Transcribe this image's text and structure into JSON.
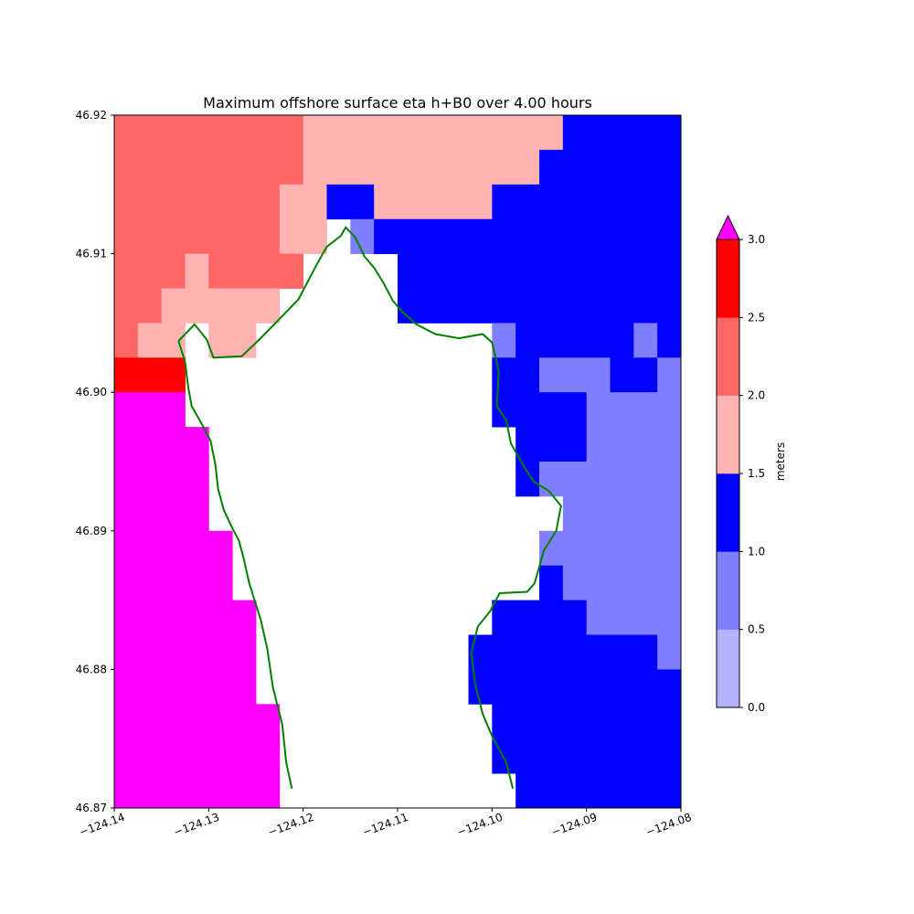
{
  "chart_data": {
    "type": "heatmap",
    "title": "Maximum offshore surface eta h+B0 over 4.00 hours",
    "xlabel": "",
    "ylabel": "",
    "xlim": [
      -124.14,
      -124.08
    ],
    "ylim": [
      46.87,
      46.92
    ],
    "x_ticks": [
      -124.14,
      -124.13,
      -124.12,
      -124.11,
      -124.1,
      -124.09,
      -124.08
    ],
    "x_tick_labels": [
      "−124.14",
      "−124.13",
      "−124.12",
      "−124.11",
      "−124.10",
      "−124.09",
      "−124.08"
    ],
    "y_ticks": [
      46.87,
      46.88,
      46.89,
      46.9,
      46.91,
      46.92
    ],
    "y_tick_labels": [
      "46.87",
      "46.88",
      "46.89",
      "46.90",
      "46.91",
      "46.92"
    ],
    "grid": false,
    "colorbar": {
      "label": "meters",
      "placement": "right",
      "extend": "max",
      "levels": [
        0.0,
        0.5,
        1.0,
        1.5,
        2.0,
        2.5,
        3.0
      ],
      "level_labels": [
        "0.0",
        "0.5",
        "1.0",
        "1.5",
        "2.0",
        "2.5",
        "3.0"
      ],
      "colors": [
        "#b3b3ff",
        "#8080ff",
        "#0000ff",
        "#ffb3b3",
        "#ff6666",
        "#ff0000"
      ],
      "over_color": "#ff00ff"
    },
    "grid_spacing_deg": 0.0025,
    "cells": [
      {
        "row": "46.9175-46.92",
        "bands": [
          [
            -124.14,
            -124.12,
            2.25
          ],
          [
            -124.12,
            -124.0925,
            1.75
          ],
          [
            -124.0925,
            -124.08,
            1.25
          ]
        ]
      },
      {
        "row": "46.915-46.9175",
        "bands": [
          [
            -124.14,
            -124.12,
            2.25
          ],
          [
            -124.12,
            -124.095,
            1.75
          ],
          [
            -124.095,
            -124.08,
            1.25
          ]
        ]
      },
      {
        "row": "46.9125-46.915",
        "bands": [
          [
            -124.14,
            -124.1225,
            2.25
          ],
          [
            -124.1225,
            -124.1175,
            1.75
          ],
          [
            -124.1175,
            -124.1125,
            1.25
          ],
          [
            -124.1125,
            -124.1,
            1.75
          ],
          [
            -124.1,
            -124.08,
            1.25
          ]
        ]
      },
      {
        "row": "46.91-46.9125",
        "bands": [
          [
            -124.14,
            -124.1225,
            2.25
          ],
          [
            -124.1225,
            -124.12,
            1.75
          ],
          [
            -124.12,
            -124.1175,
            1.75
          ],
          [
            -124.115,
            -124.1125,
            0.75
          ],
          [
            -124.1125,
            -124.08,
            1.25
          ]
        ]
      },
      {
        "row": "46.9075-46.91",
        "bands": [
          [
            -124.14,
            -124.1325,
            2.25
          ],
          [
            -124.1325,
            -124.13,
            1.75
          ],
          [
            -124.13,
            -124.12,
            2.25
          ],
          [
            -124.11,
            -124.08,
            1.25
          ]
        ]
      },
      {
        "row": "46.905-46.9075",
        "bands": [
          [
            -124.14,
            -124.135,
            2.25
          ],
          [
            -124.135,
            -124.1225,
            1.75
          ],
          [
            -124.11,
            -124.08,
            1.25
          ]
        ]
      },
      {
        "row": "46.9025-46.905",
        "bands": [
          [
            -124.14,
            -124.1375,
            2.25
          ],
          [
            -124.1375,
            -124.1325,
            1.75
          ],
          [
            -124.13,
            -124.125,
            1.75
          ],
          [
            -124.1,
            -124.0975,
            0.75
          ],
          [
            -124.0975,
            -124.085,
            1.25
          ],
          [
            -124.085,
            -124.0825,
            0.75
          ],
          [
            -124.0825,
            -124.08,
            1.25
          ]
        ]
      },
      {
        "row": "46.90-46.9025",
        "bands": [
          [
            -124.14,
            -124.1325,
            2.75
          ],
          [
            -124.1,
            -124.095,
            1.25
          ],
          [
            -124.095,
            -124.0875,
            0.75
          ],
          [
            -124.0875,
            -124.0825,
            1.25
          ],
          [
            -124.0825,
            -124.08,
            0.75
          ]
        ]
      },
      {
        "row": "46.8975-46.90",
        "bands": [
          [
            -124.14,
            -124.1325,
            3.5
          ],
          [
            -124.1,
            -124.09,
            1.25
          ],
          [
            -124.09,
            -124.08,
            0.75
          ]
        ]
      },
      {
        "row": "46.895-46.8975",
        "bands": [
          [
            -124.14,
            -124.13,
            3.5
          ],
          [
            -124.0975,
            -124.09,
            1.25
          ],
          [
            -124.09,
            -124.08,
            0.75
          ]
        ]
      },
      {
        "row": "46.8925-46.895",
        "bands": [
          [
            -124.14,
            -124.13,
            3.5
          ],
          [
            -124.0975,
            -124.095,
            1.25
          ],
          [
            -124.095,
            -124.08,
            0.75
          ]
        ]
      },
      {
        "row": "46.89-46.8925",
        "bands": [
          [
            -124.14,
            -124.13,
            3.5
          ],
          [
            -124.0925,
            -124.08,
            0.75
          ]
        ]
      },
      {
        "row": "46.8875-46.89",
        "bands": [
          [
            -124.14,
            -124.1275,
            3.5
          ],
          [
            -124.095,
            -124.08,
            0.75
          ]
        ]
      },
      {
        "row": "46.885-46.8875",
        "bands": [
          [
            -124.14,
            -124.1275,
            3.5
          ],
          [
            -124.095,
            -124.0925,
            1.25
          ],
          [
            -124.0925,
            -124.08,
            0.75
          ]
        ]
      },
      {
        "row": "46.8825-46.885",
        "bands": [
          [
            -124.14,
            -124.125,
            3.5
          ],
          [
            -124.1,
            -124.09,
            1.25
          ],
          [
            -124.09,
            -124.08,
            0.75
          ]
        ]
      },
      {
        "row": "46.88-46.8825",
        "bands": [
          [
            -124.14,
            -124.125,
            3.5
          ],
          [
            -124.1025,
            -124.0825,
            1.25
          ],
          [
            -124.0825,
            -124.08,
            0.75
          ]
        ]
      },
      {
        "row": "46.8775-46.88",
        "bands": [
          [
            -124.14,
            -124.125,
            3.5
          ],
          [
            -124.1025,
            -124.08,
            1.25
          ]
        ]
      },
      {
        "row": "46.875-46.8775",
        "bands": [
          [
            -124.14,
            -124.1225,
            3.5
          ],
          [
            -124.1,
            -124.08,
            1.25
          ]
        ]
      },
      {
        "row": "46.8725-46.875",
        "bands": [
          [
            -124.14,
            -124.1225,
            3.5
          ],
          [
            -124.1,
            -124.08,
            1.25
          ]
        ]
      },
      {
        "row": "46.87-46.8725",
        "bands": [
          [
            -124.14,
            -124.1225,
            3.5
          ],
          [
            -124.0975,
            -124.08,
            1.25
          ]
        ]
      }
    ],
    "coastline": {
      "color": "#008000",
      "points": [
        [
          -124.1332,
          46.9037
        ],
        [
          -124.1315,
          46.9049
        ],
        [
          -124.1302,
          46.9038
        ],
        [
          -124.1295,
          46.9025
        ],
        [
          -124.1265,
          46.9026
        ],
        [
          -124.1245,
          46.9039
        ],
        [
          -124.1205,
          46.9067
        ],
        [
          -124.1185,
          46.9093
        ],
        [
          -124.1175,
          46.9105
        ],
        [
          -124.116,
          46.9113
        ],
        [
          -124.1155,
          46.9119
        ],
        [
          -124.1145,
          46.9112
        ],
        [
          -124.1135,
          46.9098
        ],
        [
          -124.1125,
          46.909
        ],
        [
          -124.1115,
          46.9079
        ],
        [
          -124.1105,
          46.9066
        ],
        [
          -124.1095,
          46.9058
        ],
        [
          -124.108,
          46.9049
        ],
        [
          -124.106,
          46.9042
        ],
        [
          -124.1035,
          46.9039
        ],
        [
          -124.101,
          46.9042
        ],
        [
          -124.1,
          46.9036
        ],
        [
          -124.0995,
          46.9022
        ],
        [
          -124.0993,
          46.9014
        ],
        [
          -124.0995,
          46.899
        ],
        [
          -124.0985,
          46.898
        ],
        [
          -124.098,
          46.8963
        ],
        [
          -124.0965,
          46.8945
        ],
        [
          -124.0955,
          46.8935
        ],
        [
          -124.094,
          46.8929
        ],
        [
          -124.0927,
          46.8918
        ],
        [
          -124.0932,
          46.89
        ],
        [
          -124.0945,
          46.8886
        ],
        [
          -124.0955,
          46.8862
        ],
        [
          -124.0963,
          46.8856
        ],
        [
          -124.0992,
          46.8855
        ],
        [
          -124.1002,
          46.8842
        ],
        [
          -124.1015,
          46.8831
        ],
        [
          -124.1022,
          46.8812
        ],
        [
          -124.1018,
          46.879
        ],
        [
          -124.101,
          46.8768
        ],
        [
          -124.1,
          46.8752
        ],
        [
          -124.0985,
          46.8733
        ],
        [
          -124.0978,
          46.8714
        ]
      ],
      "points_2": [
        [
          -124.1332,
          46.9037
        ],
        [
          -124.1325,
          46.9022
        ],
        [
          -124.1322,
          46.9005
        ],
        [
          -124.1318,
          46.899
        ],
        [
          -124.1308,
          46.8978
        ],
        [
          -124.1298,
          46.8965
        ],
        [
          -124.1293,
          46.8948
        ],
        [
          -124.129,
          46.893
        ],
        [
          -124.1284,
          46.8915
        ],
        [
          -124.1275,
          46.8902
        ],
        [
          -124.1268,
          46.8893
        ],
        [
          -124.1263,
          46.888
        ],
        [
          -124.1257,
          46.8862
        ],
        [
          -124.1245,
          46.8836
        ],
        [
          -124.1238,
          46.8815
        ],
        [
          -124.1232,
          46.8787
        ],
        [
          -124.1222,
          46.876
        ],
        [
          -124.1218,
          46.8733
        ],
        [
          -124.1212,
          46.8714
        ]
      ]
    }
  }
}
